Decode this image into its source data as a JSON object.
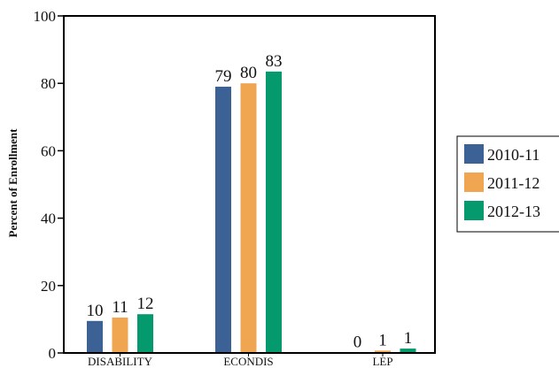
{
  "chart_data": {
    "type": "bar",
    "title": "",
    "xlabel": "",
    "ylabel": "Percent of Enrollment",
    "ylim": [
      0,
      100
    ],
    "yticks": [
      0,
      20,
      40,
      60,
      80,
      100
    ],
    "categories": [
      "DISABILITY",
      "ECONDIS",
      "LEP"
    ],
    "series": [
      {
        "name": "2010-11",
        "color": "#3b6195",
        "values": [
          10,
          79,
          0
        ]
      },
      {
        "name": "2011-12",
        "color": "#f0a550",
        "values": [
          11,
          80,
          1
        ]
      },
      {
        "name": "2012-13",
        "color": "#049a6e",
        "values": [
          12,
          83,
          1
        ]
      }
    ],
    "bar_heights": [
      [
        9.5,
        79,
        0.15
      ],
      [
        10.5,
        80,
        0.7
      ],
      [
        11.5,
        83.5,
        1.3
      ]
    ],
    "grid": false,
    "legend_position": "right"
  }
}
